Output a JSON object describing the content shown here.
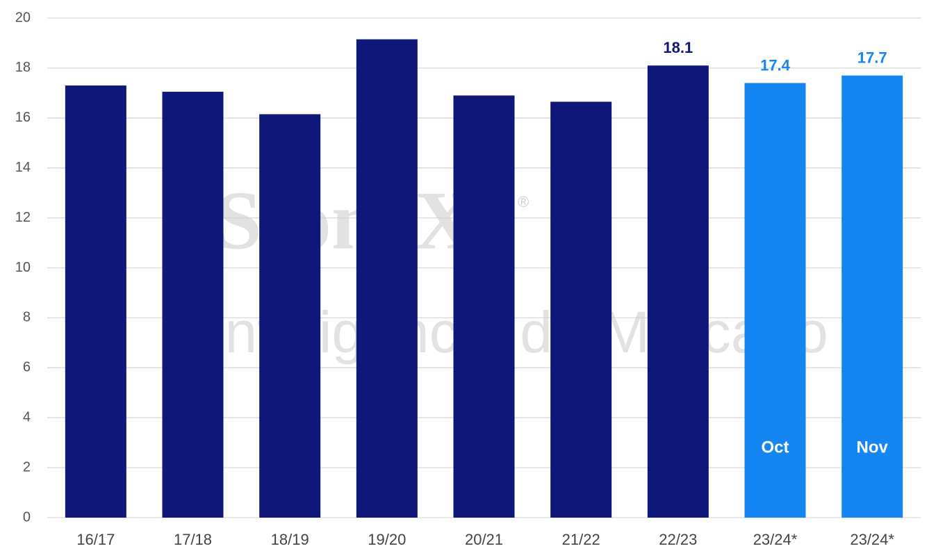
{
  "chart_data": {
    "type": "bar",
    "categories": [
      "16/17",
      "17/18",
      "18/19",
      "19/20",
      "20/21",
      "21/22",
      "22/23",
      "23/24*",
      "23/24*"
    ],
    "values": [
      17.3,
      17.05,
      16.15,
      19.15,
      16.9,
      16.65,
      18.1,
      17.4,
      17.7
    ],
    "value_labels": [
      null,
      null,
      null,
      null,
      null,
      null,
      "18.1",
      "17.4",
      "17.7"
    ],
    "bar_annotations": [
      null,
      null,
      null,
      null,
      null,
      null,
      null,
      "Oct",
      "Nov"
    ],
    "colors": [
      "#0f1878",
      "#0f1878",
      "#0f1878",
      "#0f1878",
      "#0f1878",
      "#0f1878",
      "#0f1878",
      "#1585f2",
      "#1585f2"
    ],
    "ylim": [
      0,
      20
    ],
    "yticks": [
      0,
      2,
      4,
      6,
      8,
      10,
      12,
      14,
      16,
      18,
      20
    ],
    "grid": true,
    "watermark": [
      "StoneX",
      "®",
      "Inteligência de Mercado"
    ]
  }
}
